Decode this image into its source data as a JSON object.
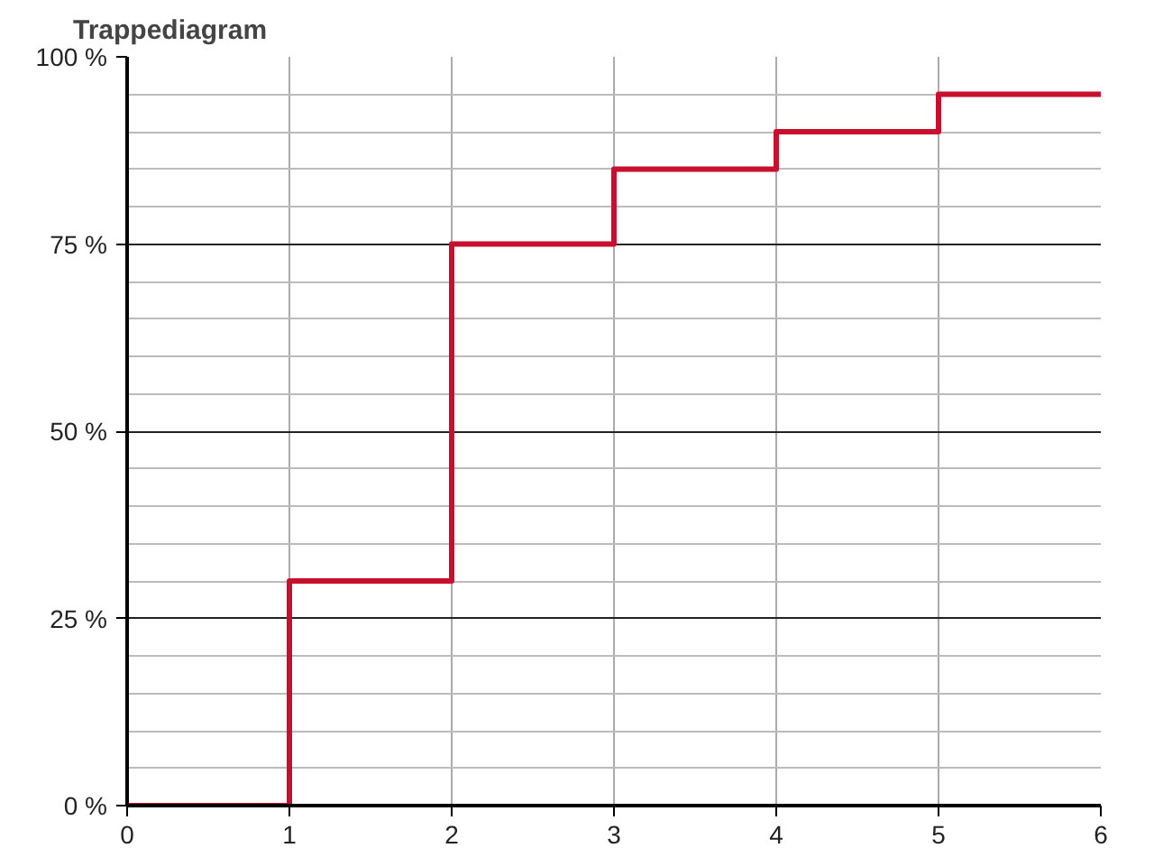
{
  "chart_data": {
    "type": "step",
    "title": "Trappediagram",
    "x": [
      0,
      1,
      2,
      3,
      4,
      5,
      6
    ],
    "series": [
      {
        "color": "#c8102e",
        "values": [
          0,
          30,
          75,
          85,
          90,
          95,
          95
        ]
      }
    ],
    "xlim": [
      0,
      6
    ],
    "ylim": [
      0,
      100
    ],
    "xticks": [
      0,
      1,
      2,
      3,
      4,
      5,
      6
    ],
    "yticks": [
      {
        "value": 0,
        "label": "0 %"
      },
      {
        "value": 25,
        "label": "25 %"
      },
      {
        "value": 50,
        "label": "50 %"
      },
      {
        "value": 75,
        "label": "75 %"
      },
      {
        "value": 100,
        "label": "100 %"
      }
    ],
    "grid": true
  }
}
